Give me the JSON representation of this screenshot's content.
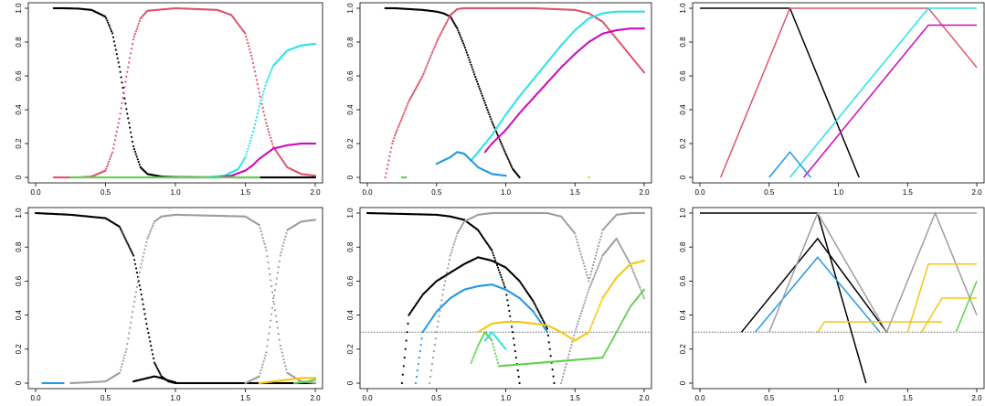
{
  "colors": {
    "black": "#000000",
    "red": "#df536b",
    "cyan": "#28e2e5",
    "magenta": "#cd0bbc",
    "gray": "#9e9e9e",
    "blue": "#2297e6",
    "yellow": "#f5c710",
    "green": "#61d04f"
  },
  "chart_data": [
    {
      "type": "scatter",
      "xlim": [
        0,
        2
      ],
      "ylim": [
        0,
        1
      ],
      "xticks": [
        "0.0",
        "0.5",
        "1.0",
        "1.5",
        "2.0"
      ],
      "yticks": [
        "0",
        "0.2",
        "0.4",
        "0.6",
        "0.8",
        "1.0"
      ],
      "series": [
        {
          "color": "black",
          "style": "points",
          "x": [
            0.13,
            0.2,
            0.3,
            0.4,
            0.5,
            0.55,
            0.6,
            0.65,
            0.7,
            0.75,
            0.8,
            0.9,
            1.0,
            1.2,
            1.5,
            2.0
          ],
          "y": [
            1.0,
            1.0,
            0.998,
            0.99,
            0.95,
            0.85,
            0.65,
            0.4,
            0.18,
            0.06,
            0.02,
            0.005,
            0.002,
            0.001,
            0.0,
            0.0
          ]
        },
        {
          "color": "red",
          "style": "points",
          "x": [
            0.13,
            0.3,
            0.4,
            0.5,
            0.55,
            0.6,
            0.65,
            0.7,
            0.75,
            0.8,
            1.0,
            1.3,
            1.4,
            1.5,
            1.55,
            1.6,
            1.65,
            1.7,
            1.8,
            1.9,
            2.0
          ],
          "y": [
            0.0,
            0.0,
            0.005,
            0.04,
            0.15,
            0.35,
            0.6,
            0.82,
            0.94,
            0.985,
            1.0,
            0.99,
            0.96,
            0.85,
            0.7,
            0.5,
            0.32,
            0.18,
            0.06,
            0.02,
            0.01
          ]
        },
        {
          "color": "cyan",
          "style": "points",
          "x": [
            0.8,
            1.2,
            1.35,
            1.45,
            1.5,
            1.55,
            1.6,
            1.65,
            1.7,
            1.8,
            1.9,
            2.0
          ],
          "y": [
            0.0,
            0.0,
            0.01,
            0.05,
            0.12,
            0.25,
            0.42,
            0.56,
            0.66,
            0.75,
            0.78,
            0.79
          ]
        },
        {
          "color": "magenta",
          "style": "points",
          "x": [
            0.8,
            1.3,
            1.4,
            1.5,
            1.55,
            1.6,
            1.65,
            1.7,
            1.8,
            1.9,
            2.0
          ],
          "y": [
            0.0,
            0.0,
            0.01,
            0.04,
            0.07,
            0.11,
            0.14,
            0.17,
            0.19,
            0.2,
            0.2
          ]
        },
        {
          "color": "green",
          "style": "points",
          "x": [
            0.25,
            0.3,
            0.35,
            1.6
          ],
          "y": [
            0.0,
            0.0,
            0.0,
            0.0
          ]
        }
      ]
    },
    {
      "type": "scatter",
      "xlim": [
        0,
        2
      ],
      "ylim": [
        0,
        1
      ],
      "xticks": [
        "0.0",
        "0.5",
        "1.0",
        "1.5",
        "2.0"
      ],
      "yticks": [
        "0",
        "0.2",
        "0.4",
        "0.6",
        "0.8",
        "1.0"
      ],
      "series": [
        {
          "color": "black",
          "style": "points",
          "x": [
            0.13,
            0.2,
            0.3,
            0.4,
            0.5,
            0.55,
            0.6,
            0.65,
            0.7,
            0.8,
            0.9,
            1.0,
            1.05,
            1.1
          ],
          "y": [
            1.0,
            1.0,
            0.995,
            0.99,
            0.98,
            0.97,
            0.95,
            0.88,
            0.78,
            0.55,
            0.33,
            0.14,
            0.05,
            0.0
          ]
        },
        {
          "color": "red",
          "style": "points",
          "x": [
            0.13,
            0.18,
            0.2,
            0.3,
            0.4,
            0.5,
            0.6,
            0.65,
            0.7,
            1.0,
            1.2,
            1.5,
            1.6,
            1.7,
            1.8,
            1.9,
            2.0
          ],
          "y": [
            0.0,
            0.2,
            0.25,
            0.45,
            0.6,
            0.8,
            0.96,
            0.995,
            1.0,
            1.0,
            1.0,
            0.99,
            0.97,
            0.92,
            0.82,
            0.72,
            0.62
          ]
        },
        {
          "color": "cyan",
          "style": "points",
          "x": [
            0.75,
            0.8,
            0.9,
            1.0,
            1.1,
            1.2,
            1.3,
            1.4,
            1.5,
            1.6,
            1.7,
            1.8,
            1.9,
            2.0
          ],
          "y": [
            0.1,
            0.15,
            0.25,
            0.37,
            0.48,
            0.58,
            0.68,
            0.78,
            0.87,
            0.94,
            0.97,
            0.98,
            0.98,
            0.98
          ]
        },
        {
          "color": "magenta",
          "style": "points",
          "x": [
            0.85,
            0.9,
            1.0,
            1.1,
            1.2,
            1.3,
            1.4,
            1.5,
            1.6,
            1.7,
            1.8,
            1.9,
            2.0
          ],
          "y": [
            0.15,
            0.2,
            0.28,
            0.38,
            0.47,
            0.56,
            0.65,
            0.73,
            0.8,
            0.85,
            0.87,
            0.88,
            0.88
          ]
        },
        {
          "color": "blue",
          "style": "points",
          "x": [
            0.5,
            0.55,
            0.6,
            0.65,
            0.7,
            0.75,
            0.8,
            0.85,
            0.9,
            1.0
          ],
          "y": [
            0.08,
            0.1,
            0.12,
            0.15,
            0.14,
            0.1,
            0.06,
            0.04,
            0.02,
            0.01
          ]
        },
        {
          "color": "green",
          "style": "points",
          "x": [
            0.25,
            0.3,
            0.28
          ],
          "y": [
            0.0,
            0.0,
            0.04
          ]
        },
        {
          "color": "yellow",
          "style": "points",
          "x": [
            1.6
          ],
          "y": [
            0.0
          ]
        }
      ]
    },
    {
      "type": "line",
      "xlim": [
        0,
        2
      ],
      "ylim": [
        0,
        1
      ],
      "xticks": [
        "0.0",
        "0.5",
        "1.0",
        "1.5",
        "2.0"
      ],
      "yticks": [
        "0",
        "0.2",
        "0.4",
        "0.6",
        "0.8",
        "1.0"
      ],
      "series": [
        {
          "color": "black",
          "style": "line",
          "x": [
            0.0,
            0.65,
            1.15
          ],
          "y": [
            1.0,
            1.0,
            0.0
          ]
        },
        {
          "color": "red",
          "style": "line",
          "x": [
            0.15,
            0.65,
            1.65,
            2.0
          ],
          "y": [
            0.0,
            1.0,
            1.0,
            0.65
          ]
        },
        {
          "color": "cyan",
          "style": "line",
          "x": [
            0.65,
            1.65,
            2.0
          ],
          "y": [
            0.0,
            1.0,
            1.0
          ]
        },
        {
          "color": "magenta",
          "style": "line",
          "x": [
            0.75,
            1.65,
            2.0
          ],
          "y": [
            0.0,
            0.9,
            0.9
          ]
        },
        {
          "color": "blue",
          "style": "line",
          "x": [
            0.5,
            0.65,
            0.8
          ],
          "y": [
            0.0,
            0.15,
            0.0
          ]
        }
      ]
    },
    {
      "type": "scatter",
      "xlim": [
        0,
        2
      ],
      "ylim": [
        0,
        1
      ],
      "xticks": [
        "0.0",
        "0.5",
        "1.0",
        "1.5",
        "2.0"
      ],
      "yticks": [
        "0",
        "0.2",
        "0.4",
        "0.6",
        "0.8",
        "1.0"
      ],
      "series": [
        {
          "color": "black",
          "style": "points",
          "x": [
            0.0,
            0.25,
            0.5,
            0.6,
            0.7,
            0.75,
            0.8,
            0.85,
            0.9,
            0.95,
            1.0,
            1.1,
            2.0
          ],
          "y": [
            1.0,
            0.99,
            0.97,
            0.92,
            0.75,
            0.55,
            0.32,
            0.12,
            0.04,
            0.01,
            0.0,
            0.0,
            0.0
          ]
        },
        {
          "color": "gray",
          "style": "points",
          "x": [
            0.25,
            0.5,
            0.6,
            0.65,
            0.7,
            0.75,
            0.8,
            0.85,
            0.9,
            1.0,
            1.5,
            1.6,
            1.65,
            1.7,
            1.75,
            1.8,
            1.9,
            2.0
          ],
          "y": [
            0.0,
            0.01,
            0.06,
            0.2,
            0.45,
            0.68,
            0.85,
            0.95,
            0.98,
            0.99,
            0.98,
            0.93,
            0.78,
            0.5,
            0.22,
            0.06,
            0.01,
            0.0
          ]
        },
        {
          "color": "gray",
          "style": "points",
          "x": [
            1.5,
            1.6,
            1.65,
            1.7,
            1.75,
            1.8,
            1.9,
            2.0
          ],
          "y": [
            0.0,
            0.04,
            0.18,
            0.48,
            0.75,
            0.9,
            0.95,
            0.96
          ]
        },
        {
          "color": "black",
          "style": "points",
          "x": [
            0.7,
            0.75,
            0.8,
            0.85,
            0.9,
            0.95,
            1.0
          ],
          "y": [
            0.01,
            0.02,
            0.03,
            0.04,
            0.03,
            0.015,
            0.005
          ]
        },
        {
          "color": "yellow",
          "style": "points",
          "x": [
            1.6,
            1.7,
            1.8,
            1.9,
            2.0
          ],
          "y": [
            0.0,
            0.01,
            0.02,
            0.03,
            0.03
          ]
        },
        {
          "color": "green",
          "style": "points",
          "x": [
            1.85,
            1.95,
            2.0
          ],
          "y": [
            0.0,
            0.01,
            0.02
          ]
        },
        {
          "color": "blue",
          "style": "points",
          "x": [
            0.05,
            0.1,
            0.15,
            0.2
          ],
          "y": [
            0.0,
            0.0,
            0.0,
            0.0
          ]
        }
      ]
    },
    {
      "type": "scatter",
      "xlim": [
        0,
        2
      ],
      "ylim": [
        0,
        1
      ],
      "xticks": [
        "0.0",
        "0.5",
        "1.0",
        "1.5",
        "2.0"
      ],
      "yticks": [
        "0",
        "0.2",
        "0.4",
        "0.6",
        "0.8",
        "1.0"
      ],
      "hline": 0.3,
      "series": [
        {
          "color": "black",
          "style": "points",
          "x": [
            0.0,
            0.25,
            0.5,
            0.6,
            0.7,
            0.8,
            0.9,
            1.0,
            1.05,
            1.1
          ],
          "y": [
            1.0,
            0.995,
            0.99,
            0.98,
            0.96,
            0.9,
            0.78,
            0.55,
            0.3,
            0.0
          ]
        },
        {
          "color": "black",
          "style": "points",
          "x": [
            0.25,
            0.3,
            0.4,
            0.5,
            0.6,
            0.7,
            0.8,
            0.9,
            1.0,
            1.1,
            1.2,
            1.3,
            1.35
          ],
          "y": [
            0.0,
            0.4,
            0.52,
            0.6,
            0.65,
            0.7,
            0.74,
            0.72,
            0.68,
            0.6,
            0.48,
            0.32,
            0.0
          ]
        },
        {
          "color": "blue",
          "style": "points",
          "x": [
            0.35,
            0.4,
            0.5,
            0.6,
            0.7,
            0.8,
            0.9,
            1.0,
            1.1,
            1.2,
            1.3
          ],
          "y": [
            0.0,
            0.3,
            0.42,
            0.5,
            0.55,
            0.57,
            0.58,
            0.55,
            0.5,
            0.42,
            0.3
          ]
        },
        {
          "color": "gray",
          "style": "points",
          "x": [
            0.45,
            0.5,
            0.55,
            0.6,
            0.65,
            0.7,
            0.8,
            0.9,
            1.0,
            1.3,
            1.4,
            1.5,
            1.6,
            1.7,
            1.8,
            1.9,
            2.0
          ],
          "y": [
            0.0,
            0.3,
            0.55,
            0.75,
            0.88,
            0.95,
            0.99,
            1.0,
            1.0,
            1.0,
            0.98,
            0.88,
            0.6,
            0.9,
            0.99,
            1.0,
            1.0
          ]
        },
        {
          "color": "gray",
          "style": "points",
          "x": [
            1.4,
            1.5,
            1.6,
            1.7,
            1.8,
            1.9,
            2.0
          ],
          "y": [
            0.0,
            0.3,
            0.55,
            0.75,
            0.85,
            0.7,
            0.5
          ]
        },
        {
          "color": "yellow",
          "style": "points",
          "x": [
            0.8,
            0.9,
            1.0,
            1.1,
            1.2,
            1.3,
            1.4,
            1.5,
            1.6,
            1.7,
            1.8,
            1.9,
            2.0
          ],
          "y": [
            0.3,
            0.35,
            0.36,
            0.36,
            0.35,
            0.34,
            0.3,
            0.25,
            0.3,
            0.5,
            0.62,
            0.7,
            0.72
          ]
        },
        {
          "color": "green",
          "style": "points",
          "x": [
            0.75,
            0.8,
            0.85,
            0.9,
            0.95,
            1.7,
            1.8,
            1.9,
            2.0
          ],
          "y": [
            0.12,
            0.22,
            0.3,
            0.25,
            0.1,
            0.15,
            0.3,
            0.45,
            0.55
          ]
        },
        {
          "color": "cyan",
          "style": "points",
          "x": [
            0.85,
            0.9,
            1.0
          ],
          "y": [
            0.25,
            0.3,
            0.2
          ]
        }
      ]
    },
    {
      "type": "line",
      "xlim": [
        0,
        2
      ],
      "ylim": [
        0,
        1
      ],
      "xticks": [
        "0.0",
        "0.5",
        "1.0",
        "1.5",
        "2.0"
      ],
      "yticks": [
        "0",
        "0.2",
        "0.4",
        "0.6",
        "0.8",
        "1.0"
      ],
      "hline": 0.3,
      "series": [
        {
          "color": "black",
          "style": "line",
          "x": [
            0.0,
            0.85,
            1.2
          ],
          "y": [
            1.0,
            1.0,
            0.0
          ]
        },
        {
          "color": "black",
          "style": "line",
          "x": [
            0.3,
            0.85,
            1.35
          ],
          "y": [
            0.3,
            0.85,
            0.3
          ]
        },
        {
          "color": "blue",
          "style": "line",
          "x": [
            0.4,
            0.85,
            1.3
          ],
          "y": [
            0.3,
            0.74,
            0.3
          ]
        },
        {
          "color": "gray",
          "style": "line",
          "x": [
            0.5,
            0.85,
            1.35,
            1.7,
            2.0
          ],
          "y": [
            0.3,
            1.0,
            0.3,
            1.0,
            0.4
          ]
        },
        {
          "color": "gray",
          "style": "line",
          "x": [
            0.85,
            2.0
          ],
          "y": [
            1.0,
            1.0
          ]
        },
        {
          "color": "yellow",
          "style": "line",
          "x": [
            0.85,
            0.9,
            1.75
          ],
          "y": [
            0.3,
            0.36,
            0.36
          ]
        },
        {
          "color": "yellow",
          "style": "line",
          "x": [
            1.5,
            1.65,
            2.0
          ],
          "y": [
            0.3,
            0.7,
            0.7
          ]
        },
        {
          "color": "yellow",
          "style": "line",
          "x": [
            1.6,
            1.75,
            2.0
          ],
          "y": [
            0.3,
            0.5,
            0.5
          ]
        },
        {
          "color": "green",
          "style": "line",
          "x": [
            1.85,
            2.0
          ],
          "y": [
            0.3,
            0.6
          ]
        }
      ]
    }
  ]
}
